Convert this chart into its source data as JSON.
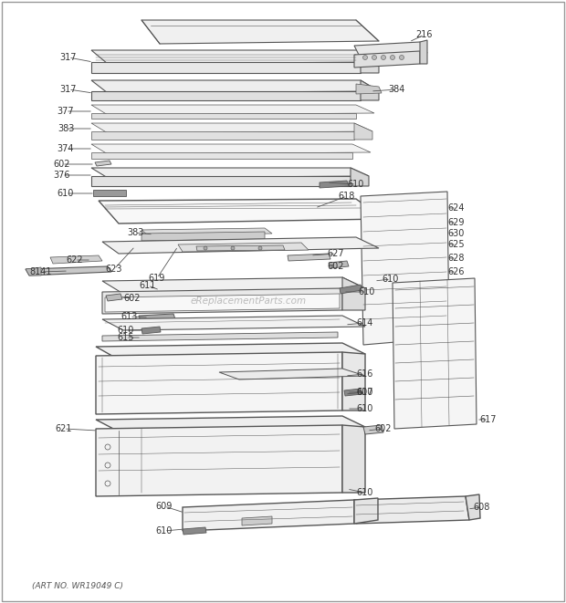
{
  "bg_color": "#ffffff",
  "watermark": "eReplacementParts.com",
  "art_no": "(ART NO. WR19049 C)",
  "line_color": "#555555",
  "label_color": "#333333",
  "label_fontsize": 7.0,
  "border_color": "#bbbbbb"
}
